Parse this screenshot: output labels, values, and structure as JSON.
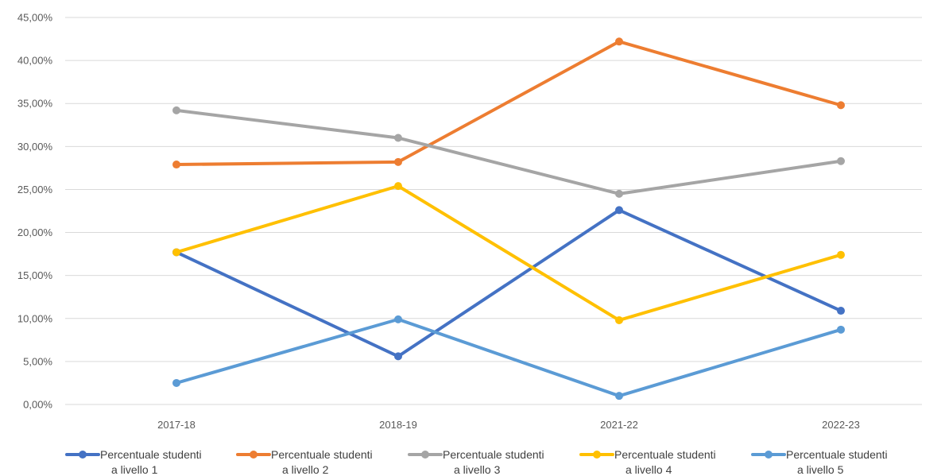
{
  "chart_data": {
    "type": "line",
    "title": "",
    "xlabel": "",
    "ylabel": "",
    "categories": [
      "2017-18",
      "2018-19",
      "2021-22",
      "2022-23"
    ],
    "ylim": [
      0,
      45
    ],
    "y_ticks": [
      0,
      5,
      10,
      15,
      20,
      25,
      30,
      35,
      40,
      45
    ],
    "y_tick_labels": [
      "0,00%",
      "5,00%",
      "10,00%",
      "15,00%",
      "20,00%",
      "25,00%",
      "30,00%",
      "35,00%",
      "40,00%",
      "45,00%"
    ],
    "grid": true,
    "legend_position": "bottom",
    "series": [
      {
        "name": "Percentuale studenti a livello 1",
        "name_lines": [
          "Percentuale studenti",
          "a livello 1"
        ],
        "color": "#4472c4",
        "values": [
          17.7,
          5.6,
          22.6,
          10.9
        ]
      },
      {
        "name": "Percentuale studenti a livello 2",
        "name_lines": [
          "Percentuale studenti",
          "a livello 2"
        ],
        "color": "#ed7d31",
        "values": [
          27.9,
          28.2,
          42.2,
          34.8
        ]
      },
      {
        "name": "Percentuale studenti a livello 3",
        "name_lines": [
          "Percentuale studenti",
          "a livello 3"
        ],
        "color": "#a5a5a5",
        "values": [
          34.2,
          31.0,
          24.5,
          28.3
        ]
      },
      {
        "name": "Percentuale studenti a livello 4",
        "name_lines": [
          "Percentuale studenti",
          "a livello 4"
        ],
        "color": "#ffc000",
        "values": [
          17.7,
          25.4,
          9.8,
          17.4
        ]
      },
      {
        "name": "Percentuale studenti a livello 5",
        "name_lines": [
          "Percentuale studenti",
          "a livello 5"
        ],
        "color": "#5b9bd5",
        "values": [
          2.5,
          9.9,
          1.0,
          8.7
        ]
      }
    ]
  }
}
